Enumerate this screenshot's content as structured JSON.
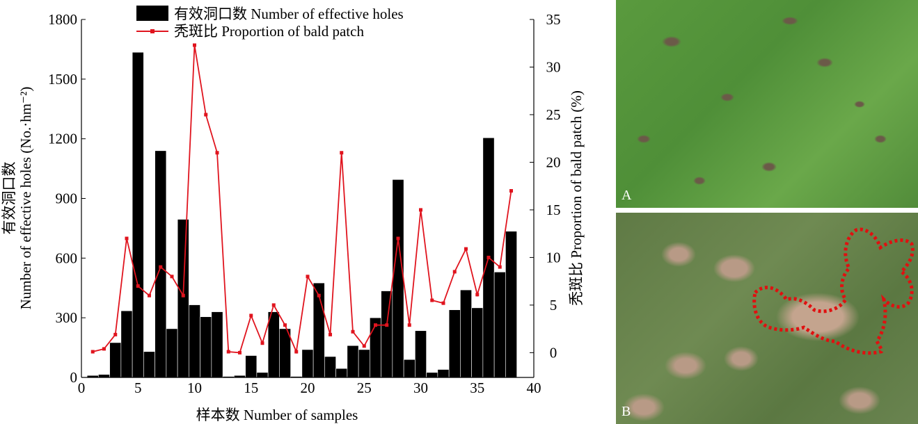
{
  "chart_data": {
    "type": "bar+line",
    "xlabel": "样本数 Number of samples",
    "ylabel_cn": "有效洞口数",
    "ylabel": "Number of effective holes (No.·hm⁻²)",
    "y2label": "秃斑比 Proportion of bald patch (%)",
    "xlim": [
      0,
      40
    ],
    "ylim": [
      0,
      1800
    ],
    "y2lim": [
      -2.6,
      35
    ],
    "xticks": [
      "0",
      "5",
      "10",
      "15",
      "20",
      "25",
      "30",
      "35",
      "40"
    ],
    "yticks": [
      "0",
      "300",
      "600",
      "900",
      "1200",
      "1500",
      "1800"
    ],
    "y2ticks": [
      "0",
      "5",
      "10",
      "15",
      "20",
      "25",
      "30",
      "35"
    ],
    "legend_position": "top-center",
    "x": [
      1,
      2,
      3,
      4,
      5,
      6,
      7,
      8,
      9,
      10,
      11,
      12,
      13,
      14,
      15,
      16,
      17,
      18,
      19,
      20,
      21,
      22,
      23,
      24,
      25,
      26,
      27,
      28,
      29,
      30,
      31,
      32,
      33,
      34,
      35,
      36,
      37,
      38
    ],
    "series": [
      {
        "name": "有效洞口数 Number of effective holes",
        "type": "bar",
        "axis": "left",
        "color": "#000000",
        "values": [
          10,
          15,
          175,
          335,
          1635,
          130,
          1140,
          245,
          795,
          365,
          305,
          330,
          5,
          10,
          110,
          25,
          330,
          245,
          5,
          140,
          475,
          105,
          45,
          160,
          140,
          300,
          435,
          995,
          90,
          235,
          25,
          40,
          340,
          440,
          350,
          1205,
          530,
          735
        ]
      },
      {
        "name": "秃斑比 Proportion of bald patch",
        "type": "line",
        "axis": "right",
        "color": "#e0141e",
        "values": [
          0.1,
          0.4,
          1.9,
          12,
          7,
          6,
          9,
          8,
          6,
          32.3,
          25,
          21,
          0.1,
          0,
          3.9,
          1,
          5,
          2.9,
          0.1,
          8,
          6,
          1.9,
          21,
          2.2,
          0.7,
          2.9,
          2.9,
          12,
          2.9,
          15,
          5.5,
          5.2,
          8.5,
          10.9,
          6.1,
          10,
          9,
          17
        ]
      }
    ]
  },
  "photos": {
    "a_label": "A",
    "b_label": "B"
  }
}
